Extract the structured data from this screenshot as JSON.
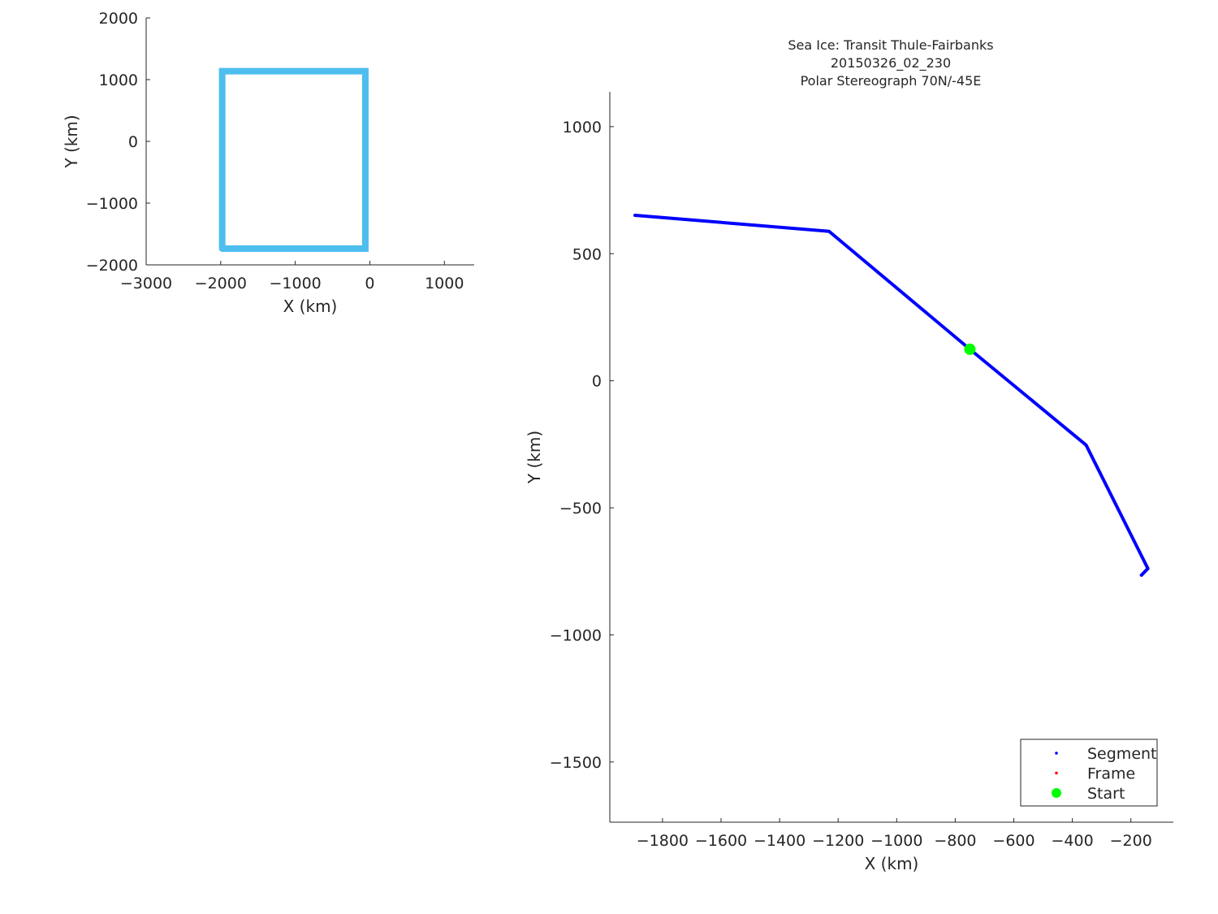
{
  "chart_data": [
    {
      "type": "line",
      "xlabel": "X (km)",
      "ylabel": "Y (km)",
      "xlim": [
        -3000,
        1400
      ],
      "ylim": [
        -2000,
        2000
      ],
      "xticks": [
        -3000,
        -2000,
        -1000,
        0,
        1000
      ],
      "yticks": [
        -2000,
        -1000,
        0,
        1000,
        2000
      ],
      "xtick_labels": [
        "−3000",
        "−2000",
        "−1000",
        "0",
        "1000"
      ],
      "ytick_labels": [
        "−2000",
        "−1000",
        "0",
        "1000",
        "2000"
      ],
      "grid": false,
      "series": [
        {
          "color": "#4DBEEE",
          "x": [
            -1980,
            -1980,
            -60,
            -60,
            -1980
          ],
          "y": [
            -1737,
            1137,
            1137,
            -1737,
            -1737
          ]
        }
      ]
    },
    {
      "type": "line",
      "title": [
        "Sea Ice: Transit Thule-Fairbanks",
        "20150326_02_230",
        "Polar Stereograph 70N/-45E"
      ],
      "xlabel": "X (km)",
      "ylabel": "Y (km)",
      "xlim": [
        -1980,
        -55
      ],
      "ylim": [
        -1737,
        1137
      ],
      "xticks": [
        -1800,
        -1600,
        -1400,
        -1200,
        -1000,
        -800,
        -600,
        -400,
        -200
      ],
      "yticks": [
        -1500,
        -1000,
        -500,
        0,
        500,
        1000
      ],
      "xtick_labels": [
        "−1800",
        "−1600",
        "−1400",
        "−1200",
        "−1000",
        "−800",
        "−600",
        "−400",
        "−200"
      ],
      "ytick_labels": [
        "−1500",
        "−1000",
        "−500",
        "0",
        "500",
        "1000"
      ],
      "grid": false,
      "series": [
        {
          "name": "Segment",
          "color": "#0000FF",
          "x": [
            -1894,
            -1231,
            -750,
            -353,
            -142,
            -164
          ],
          "y": [
            651,
            588,
            124,
            -253,
            -739,
            -765
          ]
        },
        {
          "name": "Frame",
          "color": "#FF0000",
          "x": [],
          "y": []
        },
        {
          "name": "Start",
          "color": "#00FF00",
          "marker": "hexagram",
          "x": [
            -750
          ],
          "y": [
            124
          ]
        }
      ],
      "legend": {
        "placement": "bottom-right",
        "entries": [
          "Segment",
          "Frame",
          "Start"
        ]
      }
    }
  ]
}
